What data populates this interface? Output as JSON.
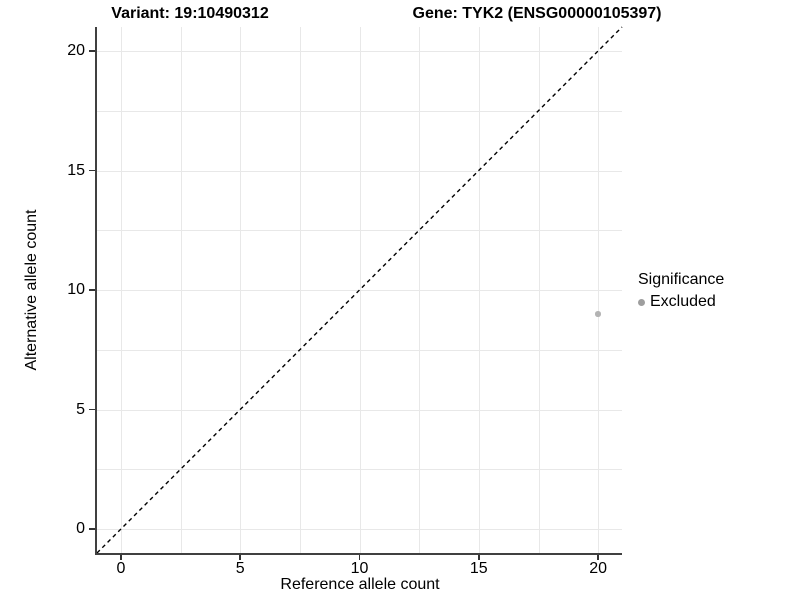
{
  "figure": {
    "title_left": "Variant: 19:10490312",
    "title_right": "Gene: TYK2 (ENSG00000105397)"
  },
  "chart_data": {
    "type": "scatter",
    "title": "Variant: 19:10490312   Gene: TYK2 (ENSG00000105397)",
    "xlabel": "Reference allele count",
    "ylabel": "Alternative allele count",
    "xlim": [
      0,
      20
    ],
    "ylim": [
      0,
      20
    ],
    "axis_expansion": 1,
    "x_ticks": [
      0,
      5,
      10,
      15,
      20
    ],
    "y_ticks": [
      0,
      5,
      10,
      15,
      20
    ],
    "grid": {
      "on": true,
      "minor_interval": 2.5,
      "color": "#e8e8e8"
    },
    "reference_line": {
      "type": "identity y=x",
      "style": "dashed",
      "color": "#000000"
    },
    "series": [
      {
        "name": "Excluded",
        "color": "#b3b3b3",
        "points": [
          {
            "x": 20,
            "y": 9
          }
        ]
      }
    ],
    "legend": {
      "title": "Significance",
      "position": "right",
      "items": [
        {
          "label": "Excluded",
          "color": "#9e9e9e",
          "marker": "circle"
        }
      ]
    }
  },
  "colors": {
    "axis_line": "#404040",
    "tick": "#333333",
    "grid": "#e8e8e8",
    "point": "#b3b3b3",
    "legend_key": "#9e9e9e",
    "dashed_line": "#000000"
  }
}
